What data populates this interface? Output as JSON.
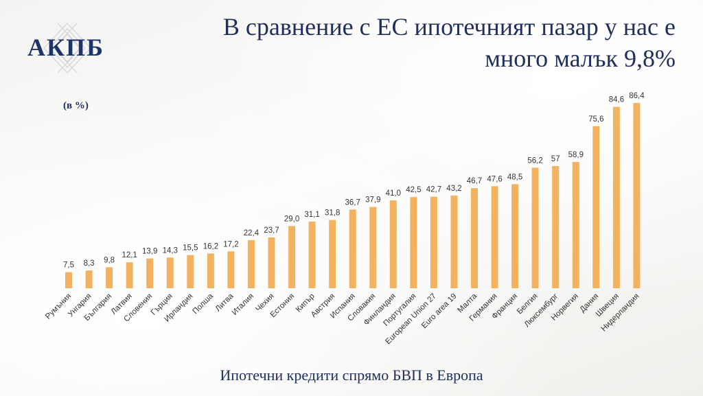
{
  "header": {
    "logo_text": "АКПБ",
    "title_line1": "В сравнение с ЕС ипотечният пазар у нас е",
    "title_line2": "много малък 9,8%"
  },
  "unit_label": "(в %)",
  "caption": "Ипотечни кредити спрямо БВП в Европа",
  "colors": {
    "bar": "#f3b260",
    "title": "#1f2e5c"
  },
  "chart_data": {
    "type": "bar",
    "categories": [
      "Румъния",
      "Унгария",
      "България",
      "Латвия",
      "Словения",
      "Гърция",
      "Ирландия",
      "Полша",
      "Литва",
      "Италия",
      "Чехия",
      "Естония",
      "Кипър",
      "Австрия",
      "Испания",
      "Словакия",
      "Финландия",
      "Португалия",
      "European Union 27",
      "Euro area 19",
      "Малта",
      "Германия",
      "Франция",
      "Белгия",
      "Люксембург",
      "Норвегия",
      "Дания",
      "Швеция",
      "Нидерландия"
    ],
    "values": [
      7.5,
      8.3,
      9.8,
      12.1,
      13.9,
      14.3,
      15.5,
      16.2,
      17.2,
      22.4,
      23.7,
      29.0,
      31.1,
      31.8,
      36.7,
      37.9,
      41.0,
      42.5,
      42.7,
      43.2,
      46.7,
      47.6,
      48.5,
      56.2,
      57,
      58.9,
      75.6,
      84.6,
      86.4
    ],
    "value_labels": [
      "7,5",
      "8,3",
      "9,8",
      "12,1",
      "13,9",
      "14,3",
      "15,5",
      "16,2",
      "17,2",
      "22,4",
      "23,7",
      "29,0",
      "31,1",
      "31,8",
      "36,7",
      "37,9",
      "41,0",
      "42,5",
      "42,7",
      "43,2",
      "46,7",
      "47,6",
      "48,5",
      "56,2",
      "57",
      "58,9",
      "75,6",
      "84,6",
      "86,4"
    ],
    "ylim": [
      0,
      86.4
    ],
    "grid": false,
    "legend": "none"
  }
}
